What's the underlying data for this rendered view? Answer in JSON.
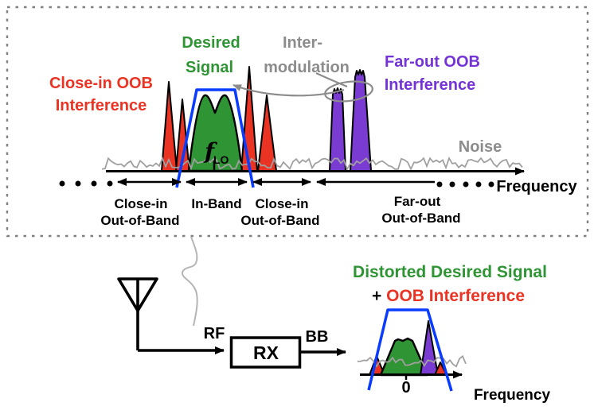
{
  "colors": {
    "red": "#ea3323",
    "green": "#2e9434",
    "purple": "#7a3bd2",
    "purple_text": "#7433d6",
    "blue": "#0a3cff",
    "anno_gray": "#8c8c8c",
    "noise_gray": "#a0a0a0",
    "border_gray": "#808080",
    "squiggle_gray": "#b5b5b5"
  },
  "top_panel": {
    "labels": {
      "close_in_oob": {
        "line1": "Close-in OOB",
        "line2": "Interference"
      },
      "desired_signal": {
        "line1": "Desired",
        "line2": "Signal"
      },
      "intermodulation": {
        "line1": "Inter-",
        "line2": "modulation"
      },
      "far_out_oob": {
        "line1": "Far-out OOB",
        "line2": "Interference"
      },
      "noise": "Noise",
      "frequency": "Frequency",
      "flo_base": "f",
      "flo_sub": "LO"
    },
    "bands": [
      {
        "line1": "Close-in",
        "line2": "Out-of-Band"
      },
      {
        "line1": "In-Band",
        "line2": ""
      },
      {
        "line1": "Close-in",
        "line2": "Out-of-Band"
      },
      {
        "line1": "Far-out",
        "line2": "Out-of-Band"
      }
    ]
  },
  "receiver": {
    "rf": "RF",
    "rx": "RX",
    "bb": "BB"
  },
  "output": {
    "title_green": "Distorted Desired Signal",
    "plus": "+ ",
    "title_red": "OOB Interference",
    "zero": "0",
    "frequency": "Frequency"
  }
}
